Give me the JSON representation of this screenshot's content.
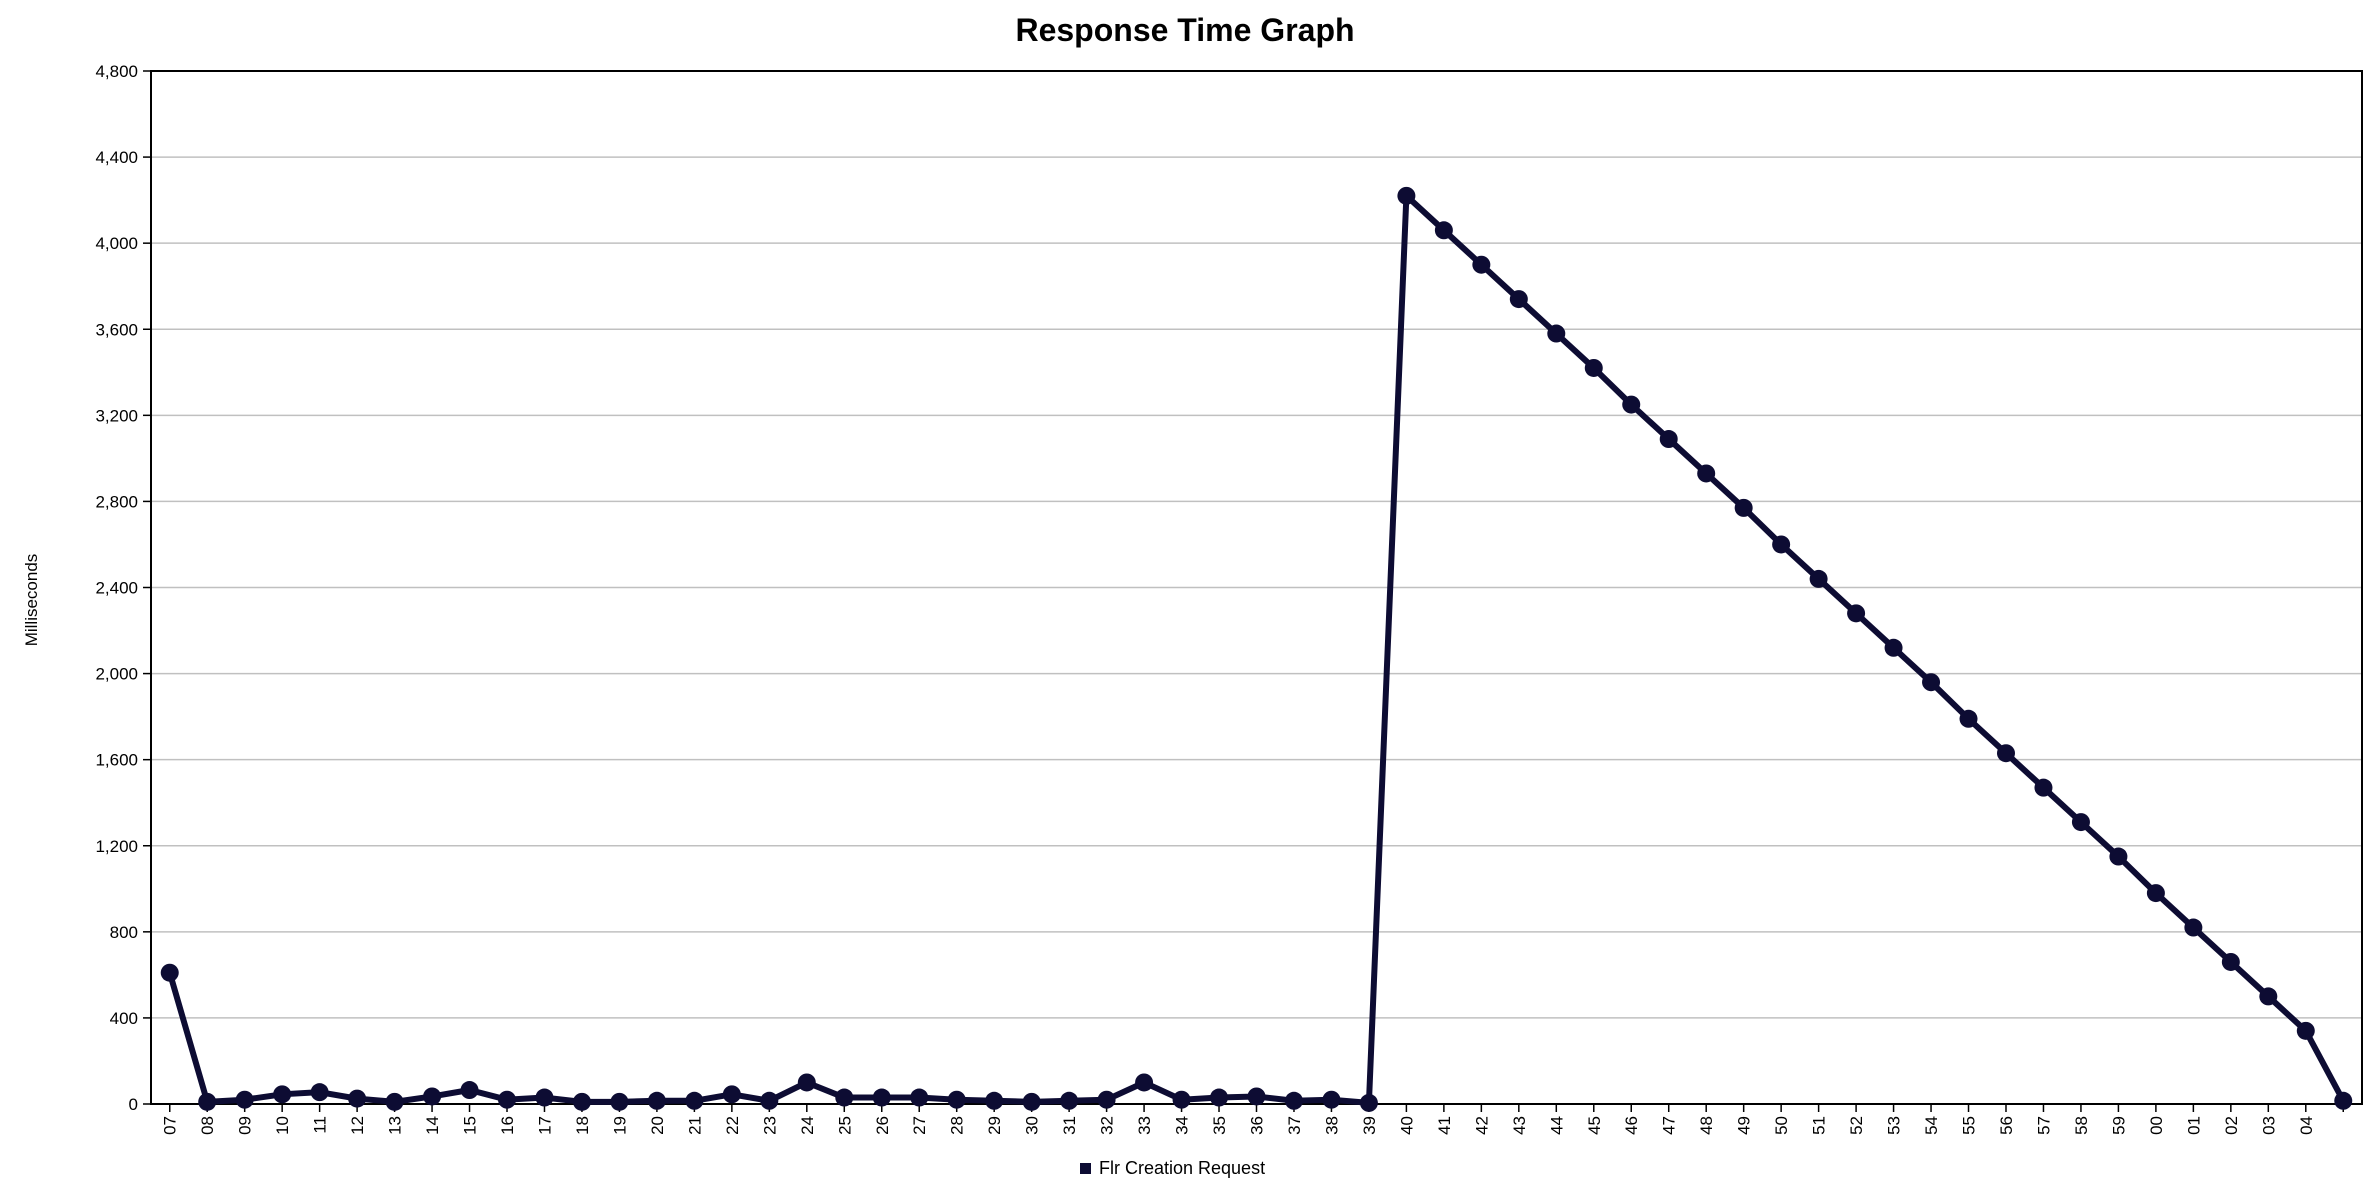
{
  "chart_data": {
    "type": "line",
    "title": "Response Time Graph",
    "xlabel": "",
    "ylabel": "Milliseconds",
    "ylim": [
      0,
      4800
    ],
    "yticks": [
      0,
      400,
      800,
      1200,
      1600,
      2000,
      2400,
      2800,
      3200,
      3600,
      4000,
      4400,
      4800
    ],
    "ytick_labels": [
      "0",
      "400",
      "800",
      "1,200",
      "1,600",
      "2,000",
      "2,400",
      "2,800",
      "3,200",
      "3,600",
      "4,000",
      "4,400",
      "4,800"
    ],
    "grid": "horizontal",
    "legend": "bottom",
    "categories": [
      "07",
      "08",
      "09",
      "10",
      "11",
      "12",
      "13",
      "14",
      "15",
      "16",
      "17",
      "18",
      "19",
      "20",
      "21",
      "22",
      "23",
      "24",
      "25",
      "26",
      "27",
      "28",
      "29",
      "30",
      "31",
      "32",
      "33",
      "34",
      "35",
      "36",
      "37",
      "38",
      "39",
      "40",
      "41",
      "42",
      "43",
      "44",
      "45",
      "46",
      "47",
      "48",
      "49",
      "50",
      "51",
      "52",
      "53",
      "54",
      "55",
      "56",
      "57",
      "58",
      "59",
      "00",
      "01",
      "02",
      "03",
      "04",
      ""
    ],
    "series": [
      {
        "name": "Flr Creation Request",
        "color": "#0d0c33",
        "values": [
          610,
          10,
          20,
          45,
          55,
          25,
          10,
          35,
          65,
          20,
          30,
          10,
          10,
          15,
          15,
          45,
          15,
          100,
          30,
          30,
          30,
          20,
          15,
          10,
          15,
          20,
          100,
          20,
          30,
          35,
          15,
          20,
          5,
          4220,
          4060,
          3900,
          3740,
          3580,
          3420,
          3250,
          3090,
          2930,
          2770,
          2600,
          2440,
          2280,
          2120,
          1960,
          1790,
          1630,
          1470,
          1310,
          1150,
          980,
          820,
          660,
          500,
          340,
          15
        ]
      }
    ]
  }
}
